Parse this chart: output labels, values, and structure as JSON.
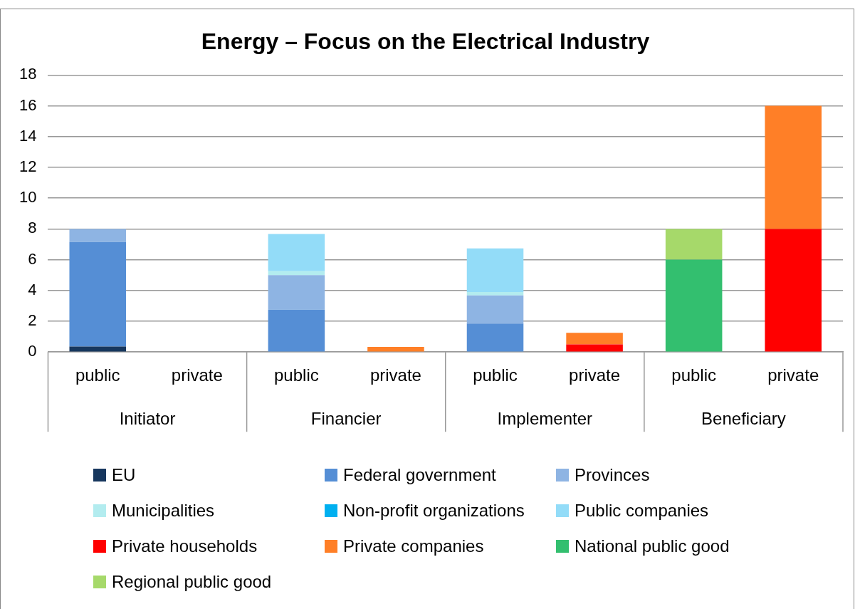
{
  "chart_data": {
    "type": "bar",
    "title": "Energy – Focus on the Electrical Industry",
    "stacked": true,
    "legend": "bottom",
    "grid": "y",
    "categories": [
      "public",
      "private",
      "public",
      "private",
      "public",
      "private",
      "public",
      "private"
    ],
    "annotations": [
      "Initiator",
      "Financier",
      "Implementer",
      "Beneficiary"
    ],
    "ylim": [
      0,
      18
    ],
    "yticks": [
      0,
      2,
      4,
      6,
      8,
      10,
      12,
      14,
      16,
      18
    ],
    "series": [
      {
        "name": "EU",
        "color": "#17375e",
        "values": [
          0.36,
          0,
          0,
          0,
          0,
          0,
          0,
          0
        ]
      },
      {
        "name": "Federal government",
        "color": "#558ed5",
        "values": [
          6.79,
          0,
          2.75,
          0,
          1.85,
          0,
          0,
          0
        ]
      },
      {
        "name": "Provinces",
        "color": "#8eb4e3",
        "values": [
          0.85,
          0,
          2.25,
          0,
          1.83,
          0,
          0,
          0
        ]
      },
      {
        "name": "Municipalities",
        "color": "#b3ecef",
        "values": [
          0,
          0,
          0.25,
          0,
          0.22,
          0,
          0,
          0
        ]
      },
      {
        "name": "Non-profit organizations",
        "color": "#00b0f0",
        "values": [
          0,
          0,
          0,
          0,
          0,
          0,
          0,
          0
        ]
      },
      {
        "name": "Public companies",
        "color": "#93dcf8",
        "values": [
          0,
          0,
          2.42,
          0,
          2.83,
          0,
          0,
          0
        ]
      },
      {
        "name": "Private households",
        "color": "#ff0000",
        "values": [
          0,
          0,
          0,
          0,
          0,
          0.5,
          0,
          8
        ]
      },
      {
        "name": "Private companies",
        "color": "#ff7f27",
        "values": [
          0,
          0,
          0,
          0.33,
          0,
          0.75,
          0,
          8
        ]
      },
      {
        "name": "National public good",
        "color": "#33bf6f",
        "values": [
          0,
          0,
          0,
          0,
          0,
          0,
          6,
          0
        ]
      },
      {
        "name": "Regional public good",
        "color": "#a6d96a",
        "values": [
          0,
          0,
          0,
          0,
          0,
          0,
          2,
          0
        ]
      }
    ]
  }
}
